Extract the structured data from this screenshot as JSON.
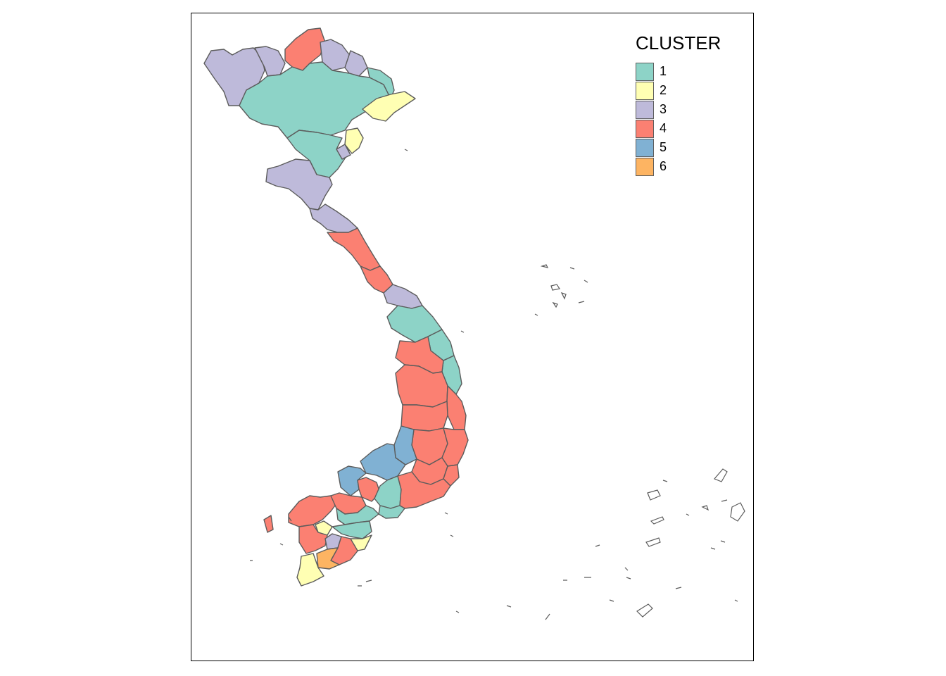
{
  "legend": {
    "title": "CLUSTER",
    "items": [
      {
        "label": "1",
        "color": "#8DD3C7"
      },
      {
        "label": "2",
        "color": "#FFFFB3"
      },
      {
        "label": "3",
        "color": "#BEBADA"
      },
      {
        "label": "4",
        "color": "#FB8072"
      },
      {
        "label": "5",
        "color": "#80B1D3"
      },
      {
        "label": "6",
        "color": "#FDB462"
      }
    ]
  }
}
